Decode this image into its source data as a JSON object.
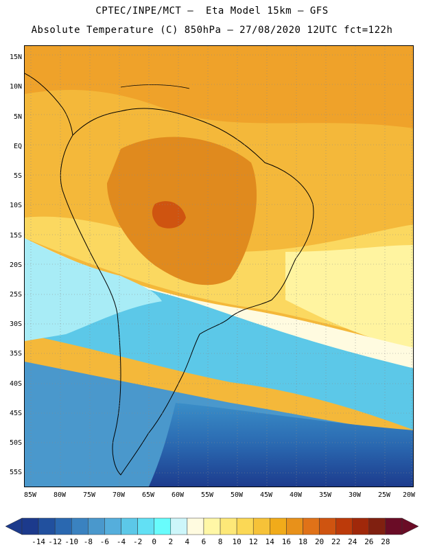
{
  "header": {
    "line1": "CPTEC/INPE/MCT –  Eta Model 15km – GFS",
    "line2": "Absolute Temperature (C) 850hPa – 27/08/2020 12UTC fct=122h"
  },
  "map": {
    "lat_labels": [
      "15N",
      "10N",
      "5N",
      "EQ",
      "5S",
      "10S",
      "15S",
      "20S",
      "25S",
      "30S",
      "35S",
      "40S",
      "45S",
      "50S",
      "55S"
    ],
    "lon_labels": [
      "85W",
      "80W",
      "75W",
      "70W",
      "65W",
      "60W",
      "55W",
      "50W",
      "45W",
      "40W",
      "35W",
      "30W",
      "25W",
      "20W"
    ],
    "lat_range": [
      -58,
      16
    ],
    "lon_range": [
      -86,
      -20
    ],
    "grid": "dotted"
  },
  "colorbar": {
    "labels": [
      "-14",
      "-12",
      "-10",
      "-8",
      "-6",
      "-4",
      "-2",
      "0",
      "2",
      "4",
      "6",
      "8",
      "10",
      "12",
      "14",
      "16",
      "18",
      "20",
      "22",
      "24",
      "26",
      "28"
    ],
    "colors": [
      "#1c3a8c",
      "#21509e",
      "#2a68b0",
      "#3a82c0",
      "#4a98cc",
      "#55aedc",
      "#5cc8e8",
      "#62e0f4",
      "#68fcfc",
      "#cdf6fa",
      "#fffbe0",
      "#fff7a6",
      "#fde878",
      "#fbd855",
      "#f6c238",
      "#f1ab1a",
      "#e8911a",
      "#e07218",
      "#cf5410",
      "#bc3a0a",
      "#a0280a",
      "#802010",
      "#6a0c26"
    ],
    "low_arrow_color": "#1c3a8c",
    "high_arrow_color": "#6a0c26"
  }
}
